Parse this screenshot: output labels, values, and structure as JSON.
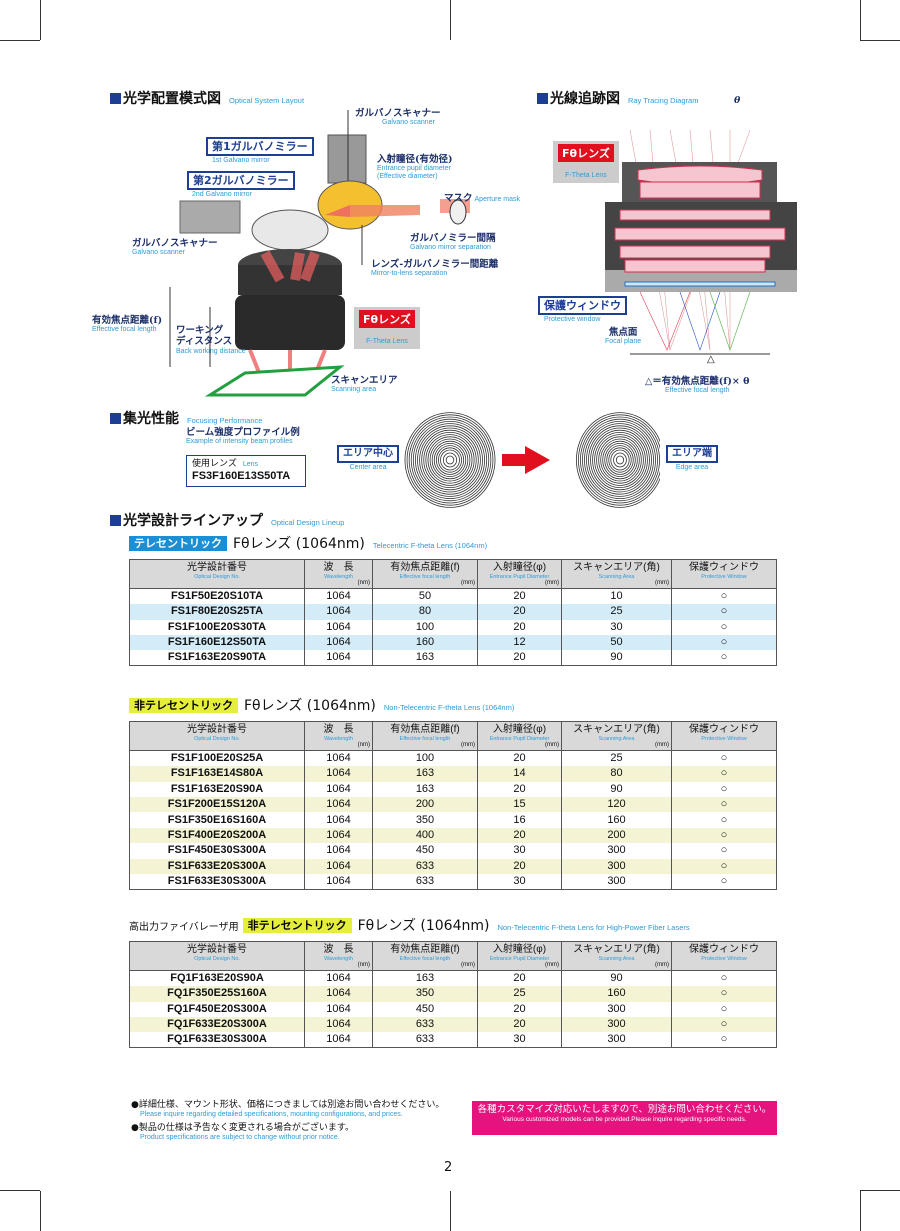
{
  "layout_section": {
    "title": "光学配置模式図",
    "title_en": "Optical System Layout",
    "labels": {
      "galvano_top": "ガルバノスキャナー",
      "galvano_top_en": "Galvano scanner",
      "mirror1": "第1ガルバノミラー",
      "mirror1_en": "1st Galvano mirror",
      "mirror2": "第2ガルバノミラー",
      "mirror2_en": "2nd Galvano mirror",
      "pupil": "入射瞳径(有効径)",
      "pupil_en1": "Entrance pupil diameter",
      "pupil_en2": "(Effective diameter)",
      "mask": "マスク",
      "mask_en": "Aperture mask",
      "galvano_left": "ガルバノスキャナー",
      "galvano_left_en": "Galvano scanner",
      "mirror_sep": "ガルバノミラー間隔",
      "mirror_sep_en": "Galvano mirror separation",
      "lens_sep": "レンズ-ガルバノミラー間距離",
      "lens_sep_en": "Mirror-to-lens separation",
      "efl": "有効焦点距離(f)",
      "efl_en": "Effective focal length",
      "bwd1": "ワーキング",
      "bwd2": "ディスタンス",
      "bwd_en": "Back working distance",
      "lens": "Fθレンズ",
      "lens_en": "F-Theta Lens",
      "scan": "スキャンエリア",
      "scan_en": "Scanning area"
    }
  },
  "ray_section": {
    "title": "光線追跡図",
    "title_en": "Ray Tracing Diagram",
    "theta": "θ",
    "lens": "Fθレンズ",
    "lens_en": "F-Theta Lens",
    "window": "保護ウィンドウ",
    "window_en": "Protective window",
    "focal": "焦点面",
    "focal_en": "Focal plane",
    "delta": "△",
    "formula": "△＝有効焦点距離(f)× θ",
    "formula_en": "Effective focal length"
  },
  "focus_section": {
    "title": "集光性能",
    "title_en": "Focusing Performance",
    "profile": "ビーム強度プロファイル例",
    "profile_en": "Example of intensity beam profiles",
    "lens_label": "使用レンズ",
    "lens_label_en": "Lens",
    "lens_model": "FS3F160E13S50TA",
    "center": "エリア中心",
    "center_en": "Center area",
    "edge": "エリア端",
    "edge_en": "Edge area"
  },
  "lineup": {
    "title": "光学設計ラインアップ",
    "title_en": "Optical Design Lineup"
  },
  "headers": [
    {
      "jp": "光学設計番号",
      "en": "Optical Design No.",
      "unit": ""
    },
    {
      "jp": "波　長",
      "en": "Wavelength",
      "unit": "(nm)"
    },
    {
      "jp": "有効焦点距離(f)",
      "en": "Effective focal length",
      "unit": "(mm)"
    },
    {
      "jp": "入射瞳径(φ)",
      "en": "Entrance Pupil Diameter",
      "unit": "(mm)"
    },
    {
      "jp": "スキャンエリア(角)",
      "en": "Scanning Area",
      "unit": "(mm)"
    },
    {
      "jp": "保護ウィンドウ",
      "en": "Protective Window",
      "unit": ""
    }
  ],
  "tables": [
    {
      "prefix": "",
      "badge": "テレセントリック",
      "badge_color": "#1a8fd6",
      "title": "Fθレンズ (1064nm)",
      "title_en": "Telecentric F-theta Lens (1064nm)",
      "stripe": "#d4ebf8",
      "rows": [
        [
          "FS1F50E20S10TA",
          "1064",
          "50",
          "20",
          "10",
          "○"
        ],
        [
          "FS1F80E20S25TA",
          "1064",
          "80",
          "20",
          "25",
          "○"
        ],
        [
          "FS1F100E20S30TA",
          "1064",
          "100",
          "20",
          "30",
          "○"
        ],
        [
          "FS1F160E12S50TA",
          "1064",
          "160",
          "12",
          "50",
          "○"
        ],
        [
          "FS1F163E20S90TA",
          "1064",
          "163",
          "20",
          "90",
          "○"
        ]
      ]
    },
    {
      "prefix": "",
      "badge": "非テレセントリック",
      "badge_color": "#e6ee3c",
      "title": "Fθレンズ (1064nm)",
      "title_en": "Non-Telecentric F-theta Lens (1064nm)",
      "stripe": "#f4f4d4",
      "rows": [
        [
          "FS1F100E20S25A",
          "1064",
          "100",
          "20",
          "25",
          "○"
        ],
        [
          "FS1F163E14S80A",
          "1064",
          "163",
          "14",
          "80",
          "○"
        ],
        [
          "FS1F163E20S90A",
          "1064",
          "163",
          "20",
          "90",
          "○"
        ],
        [
          "FS1F200E15S120A",
          "1064",
          "200",
          "15",
          "120",
          "○"
        ],
        [
          "FS1F350E16S160A",
          "1064",
          "350",
          "16",
          "160",
          "○"
        ],
        [
          "FS1F400E20S200A",
          "1064",
          "400",
          "20",
          "200",
          "○"
        ],
        [
          "FS1F450E30S300A",
          "1064",
          "450",
          "30",
          "300",
          "○"
        ],
        [
          "FS1F633E20S300A",
          "1064",
          "633",
          "20",
          "300",
          "○"
        ],
        [
          "FS1F633E30S300A",
          "1064",
          "633",
          "30",
          "300",
          "○"
        ]
      ]
    },
    {
      "prefix": "高出力ファイバレーザ用",
      "badge": "非テレセントリック",
      "badge_color": "#e6ee3c",
      "title": "Fθレンズ (1064nm)",
      "title_en": "Non-Telecentric F-theta Lens for High-Power Fiber Lasers",
      "stripe": "#f4f4d4",
      "rows": [
        [
          "FQ1F163E20S90A",
          "1064",
          "163",
          "20",
          "90",
          "○"
        ],
        [
          "FQ1F350E25S160A",
          "1064",
          "350",
          "25",
          "160",
          "○"
        ],
        [
          "FQ1F450E20S300A",
          "1064",
          "450",
          "20",
          "300",
          "○"
        ],
        [
          "FQ1F633E20S300A",
          "1064",
          "633",
          "20",
          "300",
          "○"
        ],
        [
          "FQ1F633E30S300A",
          "1064",
          "633",
          "30",
          "300",
          "○"
        ]
      ]
    }
  ],
  "notes": [
    {
      "jp": "●詳細仕様、マウント形状、価格につきましては別途お問い合わせください。",
      "en": "Please inquire regarding detailed specifications, mounting configurations, and prices."
    },
    {
      "jp": "●製品の仕様は予告なく変更される場合がございます。",
      "en": "Product specifications are subject to change without prior notice."
    }
  ],
  "custom": {
    "jp": "各種カスタマイズ対応いたしますので、別途お問い合わせください。",
    "en": "Various customized models can be provided.Please inquire regarding specific needs.",
    "color": "#e4137d"
  },
  "page_number": "2"
}
